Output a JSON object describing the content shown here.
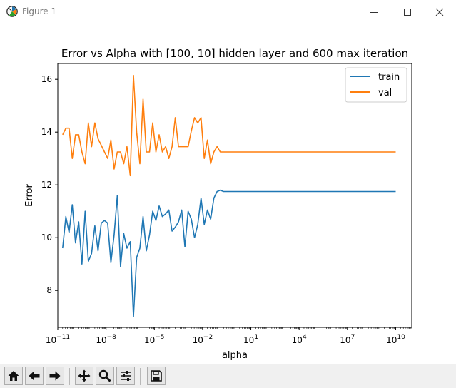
{
  "window": {
    "title": "Figure 1",
    "icons": [
      "matplotlib-icon",
      "minimize-icon",
      "maximize-icon",
      "close-icon"
    ]
  },
  "toolbar": {
    "buttons": [
      "home-icon",
      "back-icon",
      "forward-icon",
      "pan-icon",
      "zoom-icon",
      "configure-subplots-icon",
      "save-icon"
    ]
  },
  "chart_data": {
    "type": "line",
    "title": "Error vs Alpha with [100, 10] hidden layer and 600 max iteration",
    "xlabel": "alpha",
    "ylabel": "Error",
    "xscale": "log",
    "xlim": [
      1e-11,
      100000000000.0
    ],
    "ylim": [
      6.6,
      16.6
    ],
    "xticks": [
      {
        "value": 1e-11,
        "base": "10",
        "exp": "−11"
      },
      {
        "value": 1e-08,
        "base": "10",
        "exp": "−8"
      },
      {
        "value": 1e-05,
        "base": "10",
        "exp": "−5"
      },
      {
        "value": 0.01,
        "base": "10",
        "exp": "−2"
      },
      {
        "value": 10,
        "base": "10",
        "exp": "1"
      },
      {
        "value": 10000,
        "base": "10",
        "exp": "4"
      },
      {
        "value": 10000000,
        "base": "10",
        "exp": "7"
      },
      {
        "value": 10000000000,
        "base": "10",
        "exp": "10"
      }
    ],
    "yticks": [
      8,
      10,
      12,
      14,
      16
    ],
    "grid": false,
    "legend_position": "upper right",
    "series": [
      {
        "name": "train",
        "color": "#1f77b4",
        "points": [
          [
            -10.7,
            9.6
          ],
          [
            -10.5,
            10.8
          ],
          [
            -10.3,
            10.2
          ],
          [
            -10.1,
            11.25
          ],
          [
            -9.9,
            9.8
          ],
          [
            -9.7,
            10.6
          ],
          [
            -9.5,
            9.0
          ],
          [
            -9.3,
            11.0
          ],
          [
            -9.1,
            9.1
          ],
          [
            -8.9,
            9.4
          ],
          [
            -8.7,
            10.45
          ],
          [
            -8.5,
            9.5
          ],
          [
            -8.3,
            10.55
          ],
          [
            -8.1,
            10.65
          ],
          [
            -7.9,
            10.55
          ],
          [
            -7.7,
            9.05
          ],
          [
            -7.5,
            10.1
          ],
          [
            -7.3,
            11.6
          ],
          [
            -7.1,
            8.9
          ],
          [
            -6.9,
            10.15
          ],
          [
            -6.7,
            9.6
          ],
          [
            -6.5,
            9.85
          ],
          [
            -6.3,
            7.0
          ],
          [
            -6.1,
            9.25
          ],
          [
            -5.9,
            9.6
          ],
          [
            -5.7,
            10.8
          ],
          [
            -5.5,
            9.5
          ],
          [
            -5.3,
            10.1
          ],
          [
            -5.1,
            11.0
          ],
          [
            -4.9,
            10.65
          ],
          [
            -4.7,
            11.2
          ],
          [
            -4.5,
            10.8
          ],
          [
            -4.3,
            10.9
          ],
          [
            -4.1,
            11.05
          ],
          [
            -3.9,
            10.25
          ],
          [
            -3.7,
            10.4
          ],
          [
            -3.5,
            10.6
          ],
          [
            -3.3,
            11.05
          ],
          [
            -3.1,
            9.65
          ],
          [
            -2.9,
            11.0
          ],
          [
            -2.7,
            10.7
          ],
          [
            -2.5,
            10.0
          ],
          [
            -2.3,
            10.5
          ],
          [
            -2.1,
            11.5
          ],
          [
            -1.9,
            10.5
          ],
          [
            -1.7,
            11.05
          ],
          [
            -1.5,
            10.7
          ],
          [
            -1.3,
            11.5
          ],
          [
            -1.1,
            11.75
          ],
          [
            -0.9,
            11.8
          ],
          [
            -0.7,
            11.75
          ],
          [
            -0.5,
            11.75
          ],
          [
            10,
            11.75
          ]
        ]
      },
      {
        "name": "val",
        "color": "#ff7f0e",
        "points": [
          [
            -10.7,
            13.9
          ],
          [
            -10.5,
            14.15
          ],
          [
            -10.3,
            14.15
          ],
          [
            -10.1,
            13.0
          ],
          [
            -9.9,
            13.9
          ],
          [
            -9.7,
            13.9
          ],
          [
            -9.5,
            13.25
          ],
          [
            -9.3,
            12.8
          ],
          [
            -9.1,
            14.35
          ],
          [
            -8.9,
            13.45
          ],
          [
            -8.7,
            14.35
          ],
          [
            -8.5,
            13.75
          ],
          [
            -8.3,
            13.5
          ],
          [
            -8.1,
            13.25
          ],
          [
            -7.9,
            13.0
          ],
          [
            -7.7,
            13.7
          ],
          [
            -7.5,
            12.6
          ],
          [
            -7.3,
            13.25
          ],
          [
            -7.1,
            13.25
          ],
          [
            -6.9,
            12.8
          ],
          [
            -6.7,
            13.45
          ],
          [
            -6.5,
            12.35
          ],
          [
            -6.3,
            16.15
          ],
          [
            -6.1,
            14.0
          ],
          [
            -5.9,
            12.8
          ],
          [
            -5.7,
            15.25
          ],
          [
            -5.5,
            13.25
          ],
          [
            -5.3,
            13.25
          ],
          [
            -5.1,
            14.35
          ],
          [
            -4.9,
            13.25
          ],
          [
            -4.7,
            13.9
          ],
          [
            -4.5,
            13.25
          ],
          [
            -4.3,
            13.45
          ],
          [
            -4.1,
            13.0
          ],
          [
            -3.9,
            13.45
          ],
          [
            -3.7,
            14.55
          ],
          [
            -3.5,
            13.45
          ],
          [
            -3.3,
            13.45
          ],
          [
            -3.1,
            13.45
          ],
          [
            -2.9,
            13.45
          ],
          [
            -2.7,
            14.05
          ],
          [
            -2.5,
            14.55
          ],
          [
            -2.3,
            14.35
          ],
          [
            -2.1,
            14.55
          ],
          [
            -1.9,
            13.0
          ],
          [
            -1.7,
            13.7
          ],
          [
            -1.5,
            12.8
          ],
          [
            -1.3,
            13.25
          ],
          [
            -1.1,
            13.45
          ],
          [
            -0.9,
            13.25
          ],
          [
            -0.7,
            13.25
          ],
          [
            -0.5,
            13.25
          ],
          [
            10,
            13.25
          ]
        ]
      }
    ]
  }
}
